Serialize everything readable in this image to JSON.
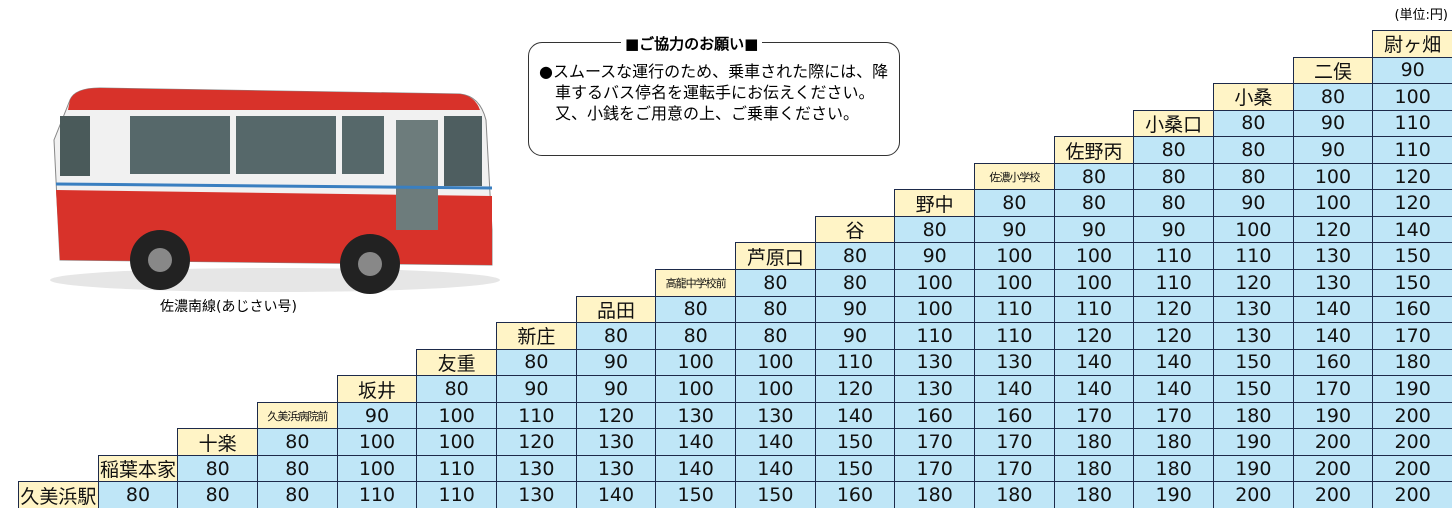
{
  "unit": "(単位:円)",
  "notice": {
    "title": "■ご協力のお願い■",
    "text": "●スムースな運行のため、乗車された際には、降車するバス停名を運転手にお伝えください。又、小銭をご用意の上、ご乗車ください。"
  },
  "photo_caption": "佐濃南線(あじさい号)",
  "fare_table": {
    "rows": [
      {
        "stop": "尉ヶ畑",
        "fares": []
      },
      {
        "stop": "二俣",
        "fares": [
          90
        ]
      },
      {
        "stop": "小桑",
        "fares": [
          80,
          100
        ]
      },
      {
        "stop": "小桑口",
        "fares": [
          80,
          90,
          110
        ]
      },
      {
        "stop": "佐野丙",
        "fares": [
          80,
          80,
          90,
          110
        ]
      },
      {
        "stop": "佐濃小学校",
        "fares": [
          80,
          80,
          80,
          100,
          120
        ]
      },
      {
        "stop": "野中",
        "fares": [
          80,
          80,
          80,
          90,
          100,
          120
        ]
      },
      {
        "stop": "谷",
        "fares": [
          80,
          90,
          90,
          90,
          100,
          120,
          140
        ]
      },
      {
        "stop": "芦原口",
        "fares": [
          80,
          90,
          100,
          100,
          110,
          110,
          130,
          150
        ]
      },
      {
        "stop": "高龍中学校前",
        "fares": [
          80,
          80,
          100,
          100,
          100,
          110,
          120,
          130,
          150
        ]
      },
      {
        "stop": "品田",
        "fares": [
          80,
          80,
          90,
          100,
          110,
          110,
          120,
          130,
          140,
          160
        ]
      },
      {
        "stop": "新庄",
        "fares": [
          80,
          80,
          80,
          90,
          110,
          110,
          120,
          120,
          130,
          140,
          170
        ]
      },
      {
        "stop": "友重",
        "fares": [
          80,
          90,
          100,
          100,
          110,
          130,
          130,
          140,
          140,
          150,
          160,
          180
        ]
      },
      {
        "stop": "坂井",
        "fares": [
          80,
          90,
          90,
          100,
          100,
          120,
          130,
          140,
          140,
          140,
          150,
          170,
          190
        ]
      },
      {
        "stop": "久美浜病院前",
        "fares": [
          90,
          100,
          110,
          120,
          130,
          130,
          140,
          160,
          160,
          170,
          170,
          180,
          190,
          200
        ]
      },
      {
        "stop": "十楽",
        "fares": [
          80,
          100,
          100,
          120,
          130,
          140,
          140,
          150,
          170,
          170,
          180,
          180,
          190,
          200,
          200
        ]
      },
      {
        "stop": "稲葉本家",
        "fares": [
          80,
          80,
          100,
          110,
          130,
          130,
          140,
          140,
          150,
          170,
          170,
          180,
          180,
          190,
          200,
          200
        ]
      },
      {
        "stop": "久美浜駅",
        "fares": [
          80,
          80,
          80,
          110,
          110,
          130,
          140,
          150,
          150,
          160,
          180,
          180,
          180,
          190,
          200,
          200,
          200
        ]
      }
    ]
  }
}
